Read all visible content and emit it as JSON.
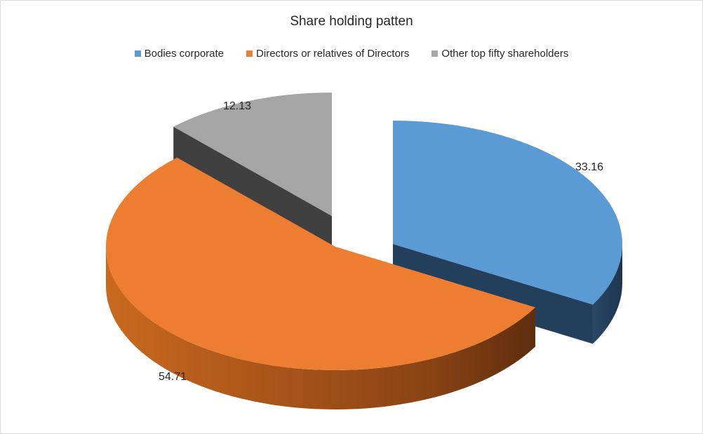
{
  "chart_data": {
    "type": "pie",
    "title": "Share holding patten",
    "legend_position": "top",
    "slices": [
      {
        "label": "Bodies corporate",
        "value": 33.16,
        "color": "#5b9bd5",
        "dark": "#243f5c"
      },
      {
        "label": "Directors or relatives of Directors",
        "value": 54.71,
        "color": "#ed7d31",
        "dark": "#a9521a"
      },
      {
        "label": "Other top fifty shareholders",
        "value": 12.13,
        "color": "#a5a5a5",
        "dark": "#404040"
      }
    ],
    "data_labels": [
      "33.16",
      "54.71",
      "12.13"
    ]
  }
}
